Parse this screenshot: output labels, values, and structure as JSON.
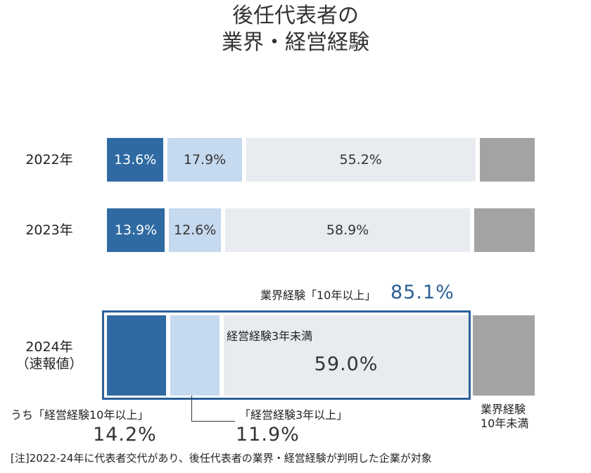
{
  "chart_data": {
    "type": "stacked-bar-horizontal",
    "title": "後任代表者の\n業界・経営経験",
    "categories": [
      "2022年",
      "2023年",
      "2024年\n（速報値）"
    ],
    "series": [
      {
        "name": "うち「経営経験10年以上」",
        "color": "#2f6aa3",
        "values": [
          13.6,
          13.9,
          14.2
        ],
        "value_labels": [
          "13.6%",
          "13.9%",
          "14.2%"
        ]
      },
      {
        "name": "「経営経験3年以上」",
        "color": "#c5d9ef",
        "values": [
          17.9,
          12.6,
          11.9
        ],
        "value_labels": [
          "17.9%",
          "12.6%",
          "11.9%"
        ]
      },
      {
        "name": "経営経験3年未満",
        "color": "#e8ebef",
        "values": [
          55.2,
          58.9,
          59.0
        ],
        "value_labels": [
          "55.2%",
          "58.9%",
          "59.0%"
        ]
      },
      {
        "name": "業界経験\n10年未満",
        "color": "#a3a3a3",
        "values": [
          13.3,
          14.6,
          14.9
        ]
      }
    ],
    "annotation": {
      "text": "業界経験「10年以上」",
      "value": 85.1,
      "label": "85.1%"
    },
    "footnote": "[注]2022-24年に代表者交代があり、後任代表者の業界・経営経験が判明した企業が対象"
  }
}
